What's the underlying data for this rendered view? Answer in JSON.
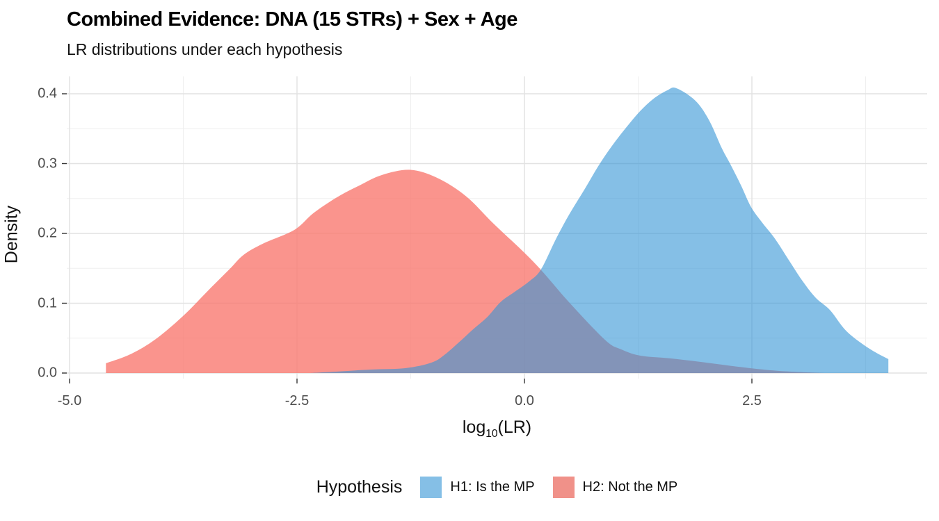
{
  "title": "Combined Evidence: DNA (15 STRs) + Sex + Age",
  "subtitle": "LR distributions under each hypothesis",
  "axes": {
    "x": {
      "title_prefix": "log",
      "title_sub": "10",
      "title_suffix": "(LR)",
      "ticks": [
        {
          "value": -5.0,
          "label": "-5.0"
        },
        {
          "value": -2.5,
          "label": "-2.5"
        },
        {
          "value": 0.0,
          "label": "0.0"
        },
        {
          "value": 2.5,
          "label": "2.5"
        }
      ],
      "minor_ticks": [
        -3.75,
        -1.25,
        1.25,
        3.75
      ]
    },
    "y": {
      "title": "Density",
      "ticks": [
        {
          "value": 0.0,
          "label": "0.0"
        },
        {
          "value": 0.1,
          "label": "0.1"
        },
        {
          "value": 0.2,
          "label": "0.2"
        },
        {
          "value": 0.3,
          "label": "0.3"
        },
        {
          "value": 0.4,
          "label": "0.4"
        }
      ],
      "minor_ticks": [
        0.05,
        0.15,
        0.25,
        0.35
      ]
    }
  },
  "legend": {
    "title": "Hypothesis",
    "items": [
      {
        "label": "H1: Is the MP",
        "swatch_color": "#85BFE6"
      },
      {
        "label": "H2: Not the MP",
        "swatch_color": "#F09189"
      }
    ]
  },
  "colors": {
    "h1_fill": "#3494D5",
    "h1_opacity": 0.6,
    "h2_fill": "#F8766D",
    "h2_opacity": 0.78,
    "grid_major": "#E2E2E2",
    "grid_minor": "#EFEFEF",
    "tick_mark": "#333333",
    "tick_text": "#4D4D4D"
  },
  "chart_data": {
    "type": "area",
    "title": "Combined Evidence: DNA (15 STRs) + Sex + Age",
    "subtitle": "LR distributions under each hypothesis",
    "xlabel": "log10(LR)",
    "ylabel": "Density",
    "xlim": [
      -5.03,
      4.43
    ],
    "ylim": [
      0,
      0.425
    ],
    "grid": true,
    "legend_position": "bottom",
    "series": [
      {
        "name": "H2: Not the MP",
        "hypothesis": "H2",
        "clipped_left_edge": true,
        "clipped_right_edge": false,
        "points": [
          [
            -4.6,
            0.014
          ],
          [
            -4.33,
            0.027
          ],
          [
            -4.06,
            0.048
          ],
          [
            -3.75,
            0.082
          ],
          [
            -3.47,
            0.119
          ],
          [
            -3.24,
            0.149
          ],
          [
            -3.09,
            0.169
          ],
          [
            -2.88,
            0.185
          ],
          [
            -2.53,
            0.205
          ],
          [
            -2.32,
            0.229
          ],
          [
            -2.07,
            0.251
          ],
          [
            -1.81,
            0.269
          ],
          [
            -1.56,
            0.284
          ],
          [
            -1.25,
            0.291
          ],
          [
            -0.95,
            0.279
          ],
          [
            -0.64,
            0.253
          ],
          [
            -0.34,
            0.214
          ],
          [
            -0.03,
            0.176
          ],
          [
            0.18,
            0.148
          ],
          [
            0.5,
            0.1
          ],
          [
            0.89,
            0.047
          ],
          [
            1.06,
            0.034
          ],
          [
            1.27,
            0.025
          ],
          [
            1.6,
            0.021
          ],
          [
            1.93,
            0.016
          ],
          [
            2.29,
            0.01
          ],
          [
            2.55,
            0.006
          ],
          [
            2.8,
            0.003
          ],
          [
            3.1,
            0.001
          ],
          [
            3.3,
            0.0
          ]
        ]
      },
      {
        "name": "H1: Is the MP",
        "hypothesis": "H1",
        "clipped_left_edge": false,
        "clipped_right_edge": true,
        "points": [
          [
            -2.35,
            0.0
          ],
          [
            -2.07,
            0.002
          ],
          [
            -1.69,
            0.005
          ],
          [
            -1.31,
            0.007
          ],
          [
            -1.02,
            0.015
          ],
          [
            -0.87,
            0.027
          ],
          [
            -0.72,
            0.044
          ],
          [
            -0.57,
            0.062
          ],
          [
            -0.41,
            0.08
          ],
          [
            -0.26,
            0.102
          ],
          [
            -0.11,
            0.116
          ],
          [
            0.05,
            0.131
          ],
          [
            0.18,
            0.148
          ],
          [
            0.35,
            0.193
          ],
          [
            0.5,
            0.229
          ],
          [
            0.66,
            0.263
          ],
          [
            0.81,
            0.296
          ],
          [
            0.96,
            0.325
          ],
          [
            1.12,
            0.352
          ],
          [
            1.27,
            0.375
          ],
          [
            1.42,
            0.393
          ],
          [
            1.57,
            0.405
          ],
          [
            1.67,
            0.408
          ],
          [
            1.88,
            0.39
          ],
          [
            2.03,
            0.362
          ],
          [
            2.17,
            0.322
          ],
          [
            2.26,
            0.3
          ],
          [
            2.38,
            0.269
          ],
          [
            2.49,
            0.238
          ],
          [
            2.61,
            0.216
          ],
          [
            2.75,
            0.193
          ],
          [
            2.9,
            0.163
          ],
          [
            3.05,
            0.133
          ],
          [
            3.2,
            0.108
          ],
          [
            3.36,
            0.09
          ],
          [
            3.54,
            0.06
          ],
          [
            3.79,
            0.035
          ],
          [
            4.0,
            0.02
          ]
        ]
      }
    ]
  }
}
